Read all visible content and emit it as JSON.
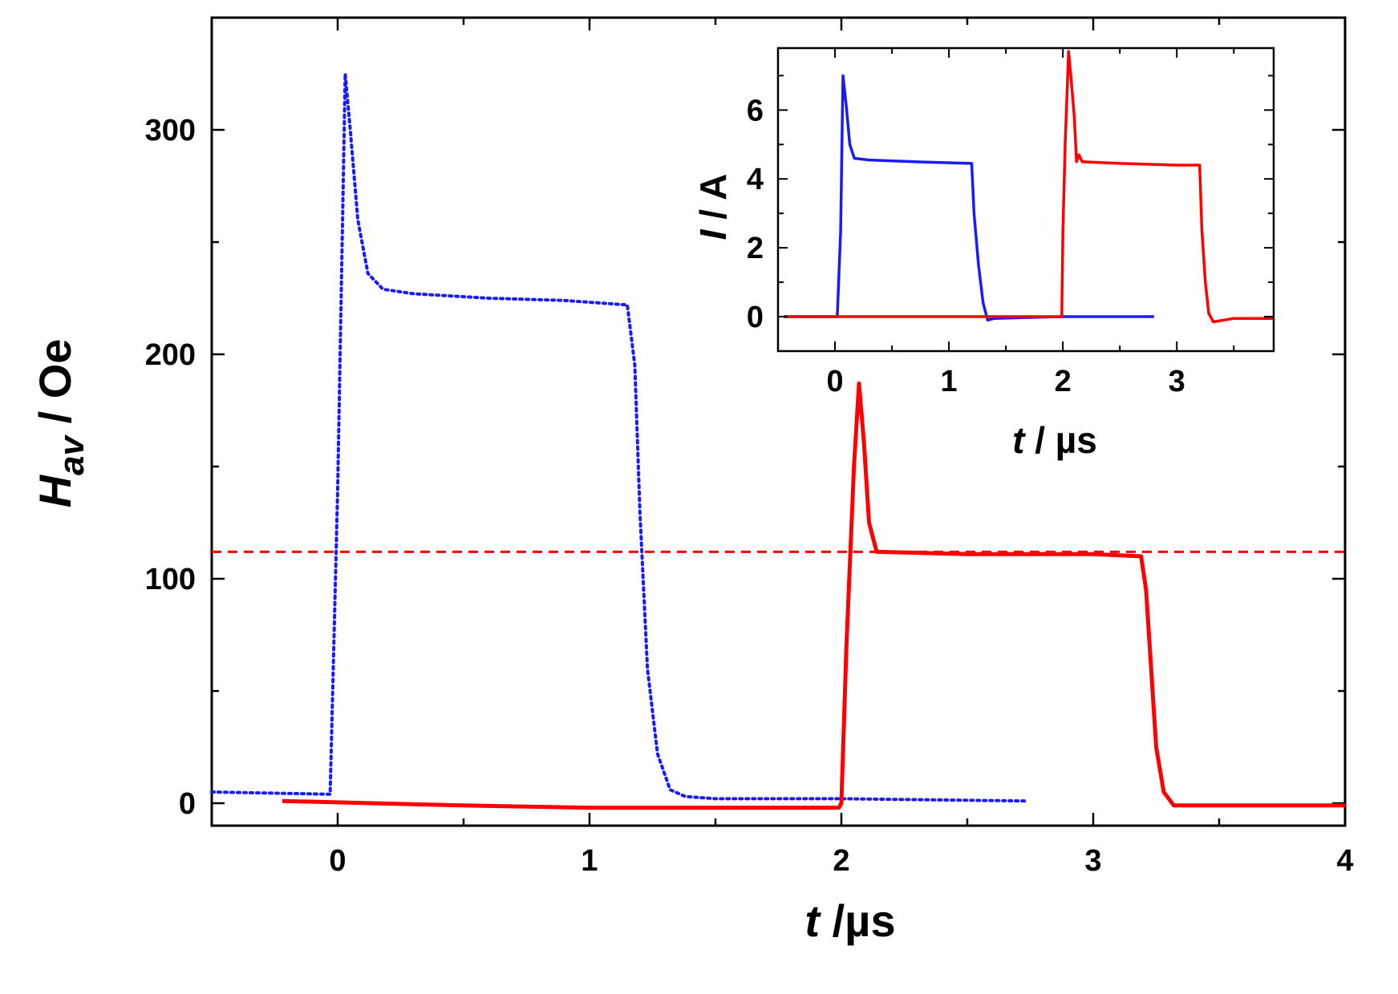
{
  "chart_data": [
    {
      "type": "line",
      "xlabel_var": "t",
      "xlabel_unit": " /µs",
      "ylabel_var": "H",
      "ylabel_sub": "av",
      "ylabel_unit": " / Oe",
      "xlim": [
        -0.5,
        4
      ],
      "ylim": [
        -10,
        350
      ],
      "xticks": [
        0,
        1,
        2,
        3,
        4
      ],
      "xtick_labels": [
        "0",
        "1",
        "2",
        "3",
        "4"
      ],
      "yticks": [
        0,
        100,
        200,
        300
      ],
      "ytick_labels": [
        "0",
        "100",
        "200",
        "300"
      ],
      "colors": {
        "blue": "#1a1aff",
        "red": "#ff0000"
      },
      "series": [
        {
          "style": "dotted",
          "color": "blue",
          "x": [
            -0.5,
            -0.03,
            0.0,
            0.03,
            0.05,
            0.08,
            0.12,
            0.18,
            0.3,
            0.6,
            0.9,
            1.15,
            1.18,
            1.2,
            1.23,
            1.27,
            1.32,
            1.38,
            1.5,
            2.0,
            2.73
          ],
          "y": [
            5,
            4,
            140,
            325,
            300,
            260,
            236,
            229,
            227,
            225,
            224,
            222,
            195,
            130,
            60,
            22,
            6,
            3,
            2,
            2,
            1
          ]
        },
        {
          "style": "solid",
          "color": "red",
          "x": [
            -0.22,
            0.5,
            1.0,
            1.99,
            2.0,
            2.02,
            2.05,
            2.07,
            2.09,
            2.11,
            2.14,
            2.5,
            3.0,
            3.19,
            3.21,
            3.23,
            3.25,
            3.28,
            3.32,
            3.5,
            4.0
          ],
          "y": [
            1,
            -1,
            -2,
            -2,
            0,
            70,
            150,
            187,
            160,
            125,
            112,
            111,
            111,
            110,
            95,
            60,
            25,
            5,
            -1,
            -1,
            -1
          ]
        },
        {
          "style": "dashed",
          "color": "red",
          "x": [
            -0.5,
            4.0
          ],
          "y": [
            112,
            112
          ]
        }
      ]
    },
    {
      "type": "line",
      "inset": true,
      "xlabel_var": "t",
      "xlabel_unit": " / µs",
      "ylabel_var": "I",
      "ylabel_unit": " / A",
      "xlim": [
        -0.5,
        3.85
      ],
      "ylim": [
        -1,
        7.8
      ],
      "xticks": [
        0,
        1,
        2,
        3
      ],
      "xtick_labels": [
        "0",
        "1",
        "2",
        "3"
      ],
      "yticks": [
        0,
        2,
        4,
        6
      ],
      "ytick_labels": [
        "0",
        "2",
        "4",
        "6"
      ],
      "series": [
        {
          "style": "dotted-solid",
          "color": "blue",
          "x": [
            -0.45,
            0.02,
            0.05,
            0.07,
            0.1,
            0.13,
            0.17,
            0.3,
            0.7,
            1.2,
            1.22,
            1.26,
            1.3,
            1.34,
            1.4,
            2.0,
            2.8
          ],
          "y": [
            0,
            0,
            2.5,
            7.0,
            6.1,
            5.0,
            4.6,
            4.55,
            4.5,
            4.45,
            3.0,
            1.5,
            0.4,
            -0.1,
            -0.05,
            0,
            0
          ],
          "dotted_segment_x": [
            0.0,
            0.15,
            1.2,
            1.35
          ]
        },
        {
          "style": "solid",
          "color": "red",
          "x": [
            -0.45,
            1.0,
            1.99,
            2.0,
            2.02,
            2.05,
            2.07,
            2.1,
            2.12,
            2.14,
            2.17,
            2.5,
            3.0,
            3.2,
            3.22,
            3.25,
            3.28,
            3.32,
            3.5,
            3.85
          ],
          "y": [
            0,
            0,
            0,
            2.5,
            5.0,
            7.7,
            7.0,
            5.8,
            4.5,
            4.7,
            4.5,
            4.45,
            4.4,
            4.4,
            2.5,
            1.0,
            0.1,
            -0.15,
            -0.05,
            -0.05
          ]
        }
      ]
    }
  ]
}
